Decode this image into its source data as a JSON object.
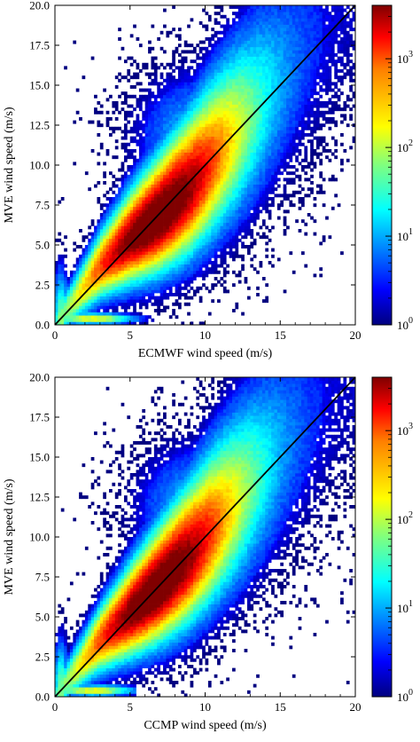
{
  "colormap": {
    "name": "jet",
    "stops": [
      "#00007f",
      "#0000ff",
      "#007fff",
      "#00ffff",
      "#7fff7f",
      "#ffff00",
      "#ff7f00",
      "#ff0000",
      "#7f0000"
    ]
  },
  "chart_data": [
    {
      "type": "heatmap",
      "xlabel": "ECMWF wind speed (m/s)",
      "ylabel": "MVE wind speed (m/s)",
      "xlim": [
        0,
        20
      ],
      "ylim": [
        0,
        20
      ],
      "x_ticks": [
        "0",
        "5",
        "10",
        "15",
        "20"
      ],
      "y_ticks": [
        "0.0",
        "2.5",
        "5.0",
        "7.5",
        "10.0",
        "12.5",
        "15.0",
        "17.5",
        "20.0"
      ],
      "bin_size": 0.2,
      "reference_line": {
        "x": [
          0,
          20
        ],
        "y": [
          0,
          20
        ]
      },
      "colorbar": {
        "scale": "log",
        "range": [
          1,
          4000
        ],
        "ticks": [
          {
            "base": "10",
            "exp": "0",
            "value": 1
          },
          {
            "base": "10",
            "exp": "1",
            "value": 10
          },
          {
            "base": "10",
            "exp": "2",
            "value": 100
          },
          {
            "base": "10",
            "exp": "3",
            "value": 1000
          }
        ]
      },
      "density_summary": {
        "peak_count": 4000,
        "ridge": [
          {
            "x": 1,
            "y": 1.2
          },
          {
            "x": 3,
            "y": 3.6
          },
          {
            "x": 5,
            "y": 5.3
          },
          {
            "x": 7,
            "y": 6.8
          },
          {
            "x": 9,
            "y": 8.6
          },
          {
            "x": 11,
            "y": 10.8
          },
          {
            "x": 13,
            "y": 13.0
          },
          {
            "x": 15,
            "y": 15.3
          },
          {
            "x": 18,
            "y": 18.5
          }
        ],
        "secondary_band": {
          "y": 0.4,
          "x_range": [
            0.5,
            6
          ]
        }
      },
      "variant": 0
    },
    {
      "type": "heatmap",
      "xlabel": "CCMP wind speed (m/s)",
      "ylabel": "MVE wind speed (m/s)",
      "xlim": [
        0,
        20
      ],
      "ylim": [
        0,
        20
      ],
      "x_ticks": [
        "0",
        "5",
        "10",
        "15",
        "20"
      ],
      "y_ticks": [
        "0.0",
        "2.5",
        "5.0",
        "7.5",
        "10.0",
        "12.5",
        "15.0",
        "17.5",
        "20.0"
      ],
      "bin_size": 0.2,
      "reference_line": {
        "x": [
          0,
          20
        ],
        "y": [
          0,
          20
        ]
      },
      "colorbar": {
        "scale": "log",
        "range": [
          1,
          4000
        ],
        "ticks": [
          {
            "base": "10",
            "exp": "0",
            "value": 1
          },
          {
            "base": "10",
            "exp": "1",
            "value": 10
          },
          {
            "base": "10",
            "exp": "2",
            "value": 100
          },
          {
            "base": "10",
            "exp": "3",
            "value": 1000
          }
        ]
      },
      "density_summary": {
        "peak_count": 4000,
        "ridge": [
          {
            "x": 1,
            "y": 1.2
          },
          {
            "x": 3,
            "y": 3.5
          },
          {
            "x": 5,
            "y": 5.2
          },
          {
            "x": 7,
            "y": 6.9
          },
          {
            "x": 9,
            "y": 8.8
          },
          {
            "x": 11,
            "y": 11.0
          },
          {
            "x": 13,
            "y": 13.2
          },
          {
            "x": 15,
            "y": 15.4
          },
          {
            "x": 18,
            "y": 18.5
          }
        ],
        "secondary_band": {
          "y": 0.4,
          "x_range": [
            0.5,
            4.5
          ]
        }
      },
      "variant": 1
    }
  ]
}
